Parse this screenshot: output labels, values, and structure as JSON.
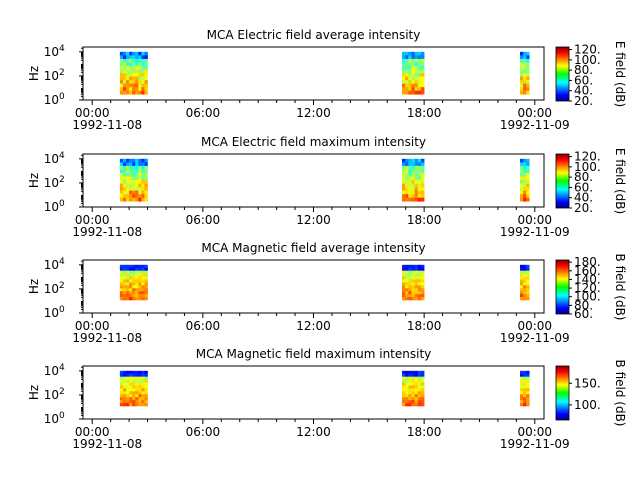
{
  "chart_data": [
    {
      "type": "heatmap",
      "title": "MCA  Electric field average intensity",
      "ylabel": "Hz",
      "y_scale": "log",
      "y_ticks": [
        {
          "base": "10",
          "exp": "0"
        },
        {
          "base": "10",
          "exp": "2"
        },
        {
          "base": "10",
          "exp": "4"
        }
      ],
      "x_ticks": [
        {
          "time": "00:00",
          "date": "1992-11-08"
        },
        {
          "time": "06:00",
          "date": ""
        },
        {
          "time": "12:00",
          "date": ""
        },
        {
          "time": "18:00",
          "date": ""
        },
        {
          "time": "00:00",
          "date": "1992-11-09"
        }
      ],
      "xlim_hours": [
        -0.5,
        24.5
      ],
      "data_blocks_hours": [
        [
          1.5,
          3.0
        ],
        [
          16.8,
          18.0
        ],
        [
          23.2,
          23.7
        ]
      ],
      "freq_range_hz": [
        3,
        10000
      ],
      "colorbar": {
        "label": "E field (dB)",
        "ticks": [
          "20.",
          "40.",
          "60.",
          "80.",
          "100.",
          "120."
        ],
        "range": [
          20,
          125
        ]
      },
      "colormap": "jet"
    },
    {
      "type": "heatmap",
      "title": "MCA  Electric field maximum intensity",
      "ylabel": "Hz",
      "y_scale": "log",
      "y_ticks": [
        {
          "base": "10",
          "exp": "0"
        },
        {
          "base": "10",
          "exp": "2"
        },
        {
          "base": "10",
          "exp": "4"
        }
      ],
      "x_ticks": [
        {
          "time": "00:00",
          "date": "1992-11-08"
        },
        {
          "time": "06:00",
          "date": ""
        },
        {
          "time": "12:00",
          "date": ""
        },
        {
          "time": "18:00",
          "date": ""
        },
        {
          "time": "00:00",
          "date": "1992-11-09"
        }
      ],
      "xlim_hours": [
        -0.5,
        24.5
      ],
      "data_blocks_hours": [
        [
          1.5,
          3.0
        ],
        [
          16.8,
          18.0
        ],
        [
          23.2,
          23.7
        ]
      ],
      "freq_range_hz": [
        3,
        10000
      ],
      "colorbar": {
        "label": "E field (dB)",
        "ticks": [
          "20.",
          "40.",
          "60.",
          "80.",
          "100.",
          "120."
        ],
        "range": [
          20,
          125
        ]
      },
      "colormap": "jet"
    },
    {
      "type": "heatmap",
      "title": "MCA  Magnetic field average intensity",
      "ylabel": "Hz",
      "y_scale": "log",
      "y_ticks": [
        {
          "base": "10",
          "exp": "0"
        },
        {
          "base": "10",
          "exp": "2"
        },
        {
          "base": "10",
          "exp": "4"
        }
      ],
      "x_ticks": [
        {
          "time": "00:00",
          "date": "1992-11-08"
        },
        {
          "time": "06:00",
          "date": ""
        },
        {
          "time": "12:00",
          "date": ""
        },
        {
          "time": "18:00",
          "date": ""
        },
        {
          "time": "00:00",
          "date": "1992-11-09"
        }
      ],
      "xlim_hours": [
        -0.5,
        24.5
      ],
      "data_blocks_hours": [
        [
          1.5,
          3.0
        ],
        [
          16.8,
          18.0
        ],
        [
          23.2,
          23.7
        ]
      ],
      "freq_range_hz": [
        3,
        10000
      ],
      "colorbar": {
        "label": "B field (dB)",
        "ticks": [
          "60.",
          "80.",
          "100.",
          "120.",
          "140.",
          "160.",
          "180."
        ],
        "range": [
          60,
          185
        ]
      },
      "colormap": "jet"
    },
    {
      "type": "heatmap",
      "title": "MCA  Magnetic field maximum intensity",
      "ylabel": "Hz",
      "y_scale": "log",
      "y_ticks": [
        {
          "base": "10",
          "exp": "0"
        },
        {
          "base": "10",
          "exp": "2"
        },
        {
          "base": "10",
          "exp": "4"
        }
      ],
      "x_ticks": [
        {
          "time": "00:00",
          "date": "1992-11-08"
        },
        {
          "time": "06:00",
          "date": ""
        },
        {
          "time": "12:00",
          "date": ""
        },
        {
          "time": "18:00",
          "date": ""
        },
        {
          "time": "00:00",
          "date": "1992-11-09"
        }
      ],
      "xlim_hours": [
        -0.5,
        24.5
      ],
      "data_blocks_hours": [
        [
          1.5,
          3.0
        ],
        [
          16.8,
          18.0
        ],
        [
          23.2,
          23.7
        ]
      ],
      "freq_range_hz": [
        3,
        10000
      ],
      "colorbar": {
        "label": "B field (dB)",
        "ticks": [
          "100.",
          "150."
        ],
        "range": [
          65,
          190
        ]
      },
      "colormap": "jet"
    }
  ]
}
